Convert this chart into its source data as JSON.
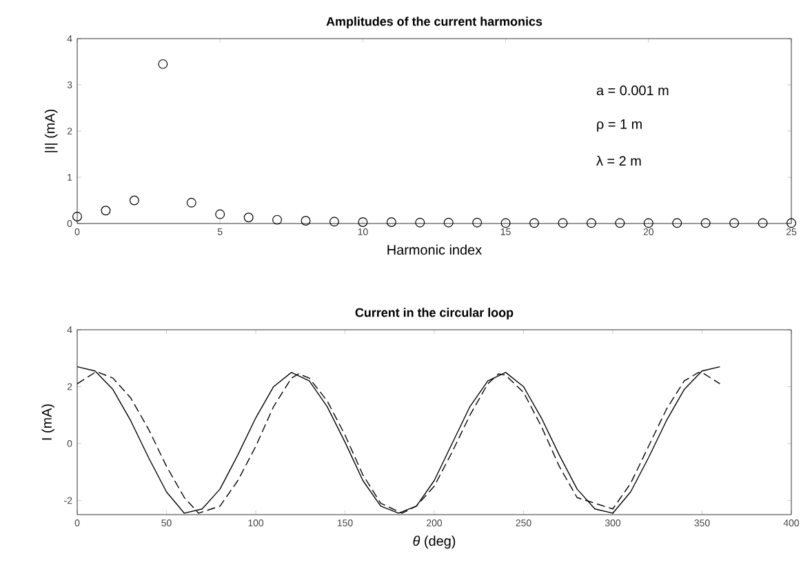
{
  "chart_data": [
    {
      "type": "scatter",
      "title": "Amplitudes of the current harmonics",
      "xlabel": "Harmonic index",
      "ylabel": "|I| (mA)",
      "marker": "circle",
      "xlim": [
        0,
        25
      ],
      "ylim": [
        0,
        4
      ],
      "xticks": [
        0,
        5,
        10,
        15,
        20,
        25
      ],
      "yticks": [
        0,
        1,
        2,
        3,
        4
      ],
      "grid": false,
      "annotations": [
        "a = 0.001 m",
        "ρ = 1 m",
        "λ = 2 m"
      ],
      "series": [
        {
          "color": "#000000",
          "x": [
            0,
            1,
            2,
            3,
            4,
            5,
            6,
            7,
            8,
            9,
            10,
            11,
            12,
            13,
            14,
            15,
            16,
            17,
            18,
            19,
            20,
            21,
            22,
            23,
            24,
            25
          ],
          "values": [
            0.15,
            0.28,
            0.5,
            3.45,
            0.45,
            0.2,
            0.13,
            0.08,
            0.06,
            0.04,
            0.03,
            0.03,
            0.02,
            0.02,
            0.02,
            0.01,
            0.01,
            0.01,
            0.01,
            0.01,
            0.01,
            0.01,
            0.01,
            0.01,
            0.01,
            0.01
          ]
        }
      ]
    },
    {
      "type": "line",
      "title": "Current in the circular loop",
      "xlabel": "*θ* (deg)",
      "ylabel": "I (mA)",
      "xlim": [
        0,
        400
      ],
      "ylim": [
        -2.5,
        4
      ],
      "xticks": [
        0,
        50,
        100,
        150,
        200,
        250,
        300,
        350,
        400
      ],
      "yticks": [
        -2,
        0,
        2,
        4
      ],
      "grid": false,
      "series": [
        {
          "color": "#000000",
          "line_style": "solid",
          "x": [
            0,
            10,
            20,
            30,
            40,
            50,
            60,
            62,
            70,
            80,
            90,
            100,
            110,
            120,
            130,
            140,
            150,
            160,
            170,
            180,
            190,
            200,
            210,
            220,
            230,
            240,
            250,
            260,
            270,
            280,
            290,
            298,
            300,
            310,
            320,
            330,
            340,
            350,
            360
          ],
          "values": [
            2.7,
            2.55,
            1.9,
            0.8,
            -0.5,
            -1.7,
            -2.45,
            null,
            -2.3,
            -1.6,
            -0.4,
            0.9,
            2.0,
            2.5,
            2.2,
            1.3,
            0.05,
            -1.3,
            -2.2,
            -2.45,
            -2.2,
            -1.3,
            0.0,
            1.3,
            2.2,
            2.5,
            2.0,
            0.9,
            -0.4,
            -1.6,
            -2.3,
            null,
            -2.45,
            -1.7,
            -0.5,
            0.8,
            1.9,
            2.55,
            2.7
          ]
        },
        {
          "color": "#000000",
          "line_style": "dashed",
          "x": [
            0,
            10,
            12,
            20,
            30,
            40,
            50,
            60,
            68,
            70,
            80,
            90,
            100,
            110,
            120,
            124,
            130,
            140,
            150,
            160,
            170,
            182,
            190,
            200,
            210,
            220,
            230,
            236,
            240,
            250,
            260,
            270,
            280,
            292,
            300,
            310,
            320,
            330,
            340,
            348,
            350,
            360
          ],
          "values": [
            2.1,
            2.5,
            2.5,
            2.3,
            1.6,
            0.5,
            -0.8,
            -1.9,
            -2.45,
            null,
            -2.2,
            -1.3,
            -0.1,
            1.3,
            2.3,
            2.45,
            2.3,
            1.5,
            0.3,
            -1.1,
            -2.1,
            -2.45,
            -2.2,
            -1.5,
            -0.3,
            1.0,
            2.1,
            2.45,
            2.4,
            1.8,
            0.6,
            -0.8,
            -1.9,
            null,
            -2.3,
            -1.4,
            -0.1,
            1.2,
            2.2,
            2.5,
            2.5,
            2.1
          ]
        }
      ]
    }
  ]
}
